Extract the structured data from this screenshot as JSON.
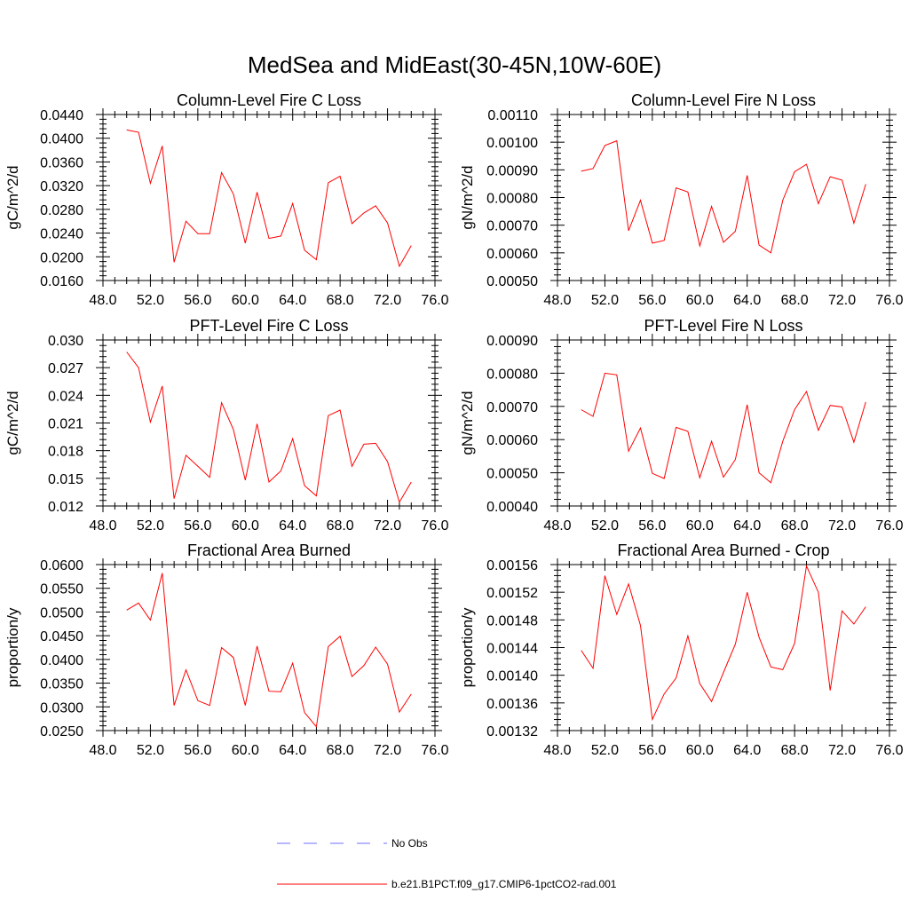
{
  "title": "MedSea and MidEast(30-45N,10W-60E)",
  "legend": [
    {
      "label": "No Obs",
      "color": "#6f6fff",
      "style": "dashed"
    },
    {
      "label": "b.e21.B1PCT.f09_g17.CMIP6-1pctCO2-rad.001",
      "color": "#ff0000",
      "style": "solid"
    }
  ],
  "chart_data": [
    {
      "type": "line",
      "title": "Column-Level Fire C Loss",
      "ylabel": "gC/m^2/d",
      "xlim": [
        48,
        76
      ],
      "ylim": [
        0.016,
        0.044
      ],
      "xticks": [
        "48.0",
        "52.0",
        "56.0",
        "60.0",
        "64.0",
        "68.0",
        "72.0",
        "76.0"
      ],
      "yticks": [
        "0.0160",
        "0.0200",
        "0.0240",
        "0.0280",
        "0.0320",
        "0.0360",
        "0.0400",
        "0.0440"
      ],
      "x": [
        50,
        51,
        52,
        53,
        54,
        55,
        56,
        57,
        58,
        59,
        60,
        61,
        62,
        63,
        64,
        65,
        66,
        67,
        68,
        69,
        70,
        71,
        72,
        73,
        74
      ],
      "series": [
        {
          "values": [
            0.0414,
            0.041,
            0.0324,
            0.0387,
            0.0191,
            0.026,
            0.0239,
            0.0239,
            0.0342,
            0.0306,
            0.0223,
            0.0309,
            0.0231,
            0.0235,
            0.029,
            0.0211,
            0.0195,
            0.0325,
            0.0336,
            0.0256,
            0.0274,
            0.0286,
            0.0257,
            0.0184,
            0.0219
          ],
          "color": "#ff0000"
        }
      ]
    },
    {
      "type": "line",
      "title": "Column-Level Fire N Loss",
      "ylabel": "gN/m^2/d",
      "xlim": [
        48,
        76
      ],
      "ylim": [
        0.0005,
        0.0011
      ],
      "xticks": [
        "48.0",
        "52.0",
        "56.0",
        "60.0",
        "64.0",
        "68.0",
        "72.0",
        "76.0"
      ],
      "yticks": [
        "0.00050",
        "0.00060",
        "0.00070",
        "0.00080",
        "0.00090",
        "0.00100",
        "0.00110"
      ],
      "x": [
        50,
        51,
        52,
        53,
        54,
        55,
        56,
        57,
        58,
        59,
        60,
        61,
        62,
        63,
        64,
        65,
        66,
        67,
        68,
        69,
        70,
        71,
        72,
        73,
        74
      ],
      "series": [
        {
          "values": [
            0.000895,
            0.000905,
            0.000988,
            0.001005,
            0.00068,
            0.00079,
            0.000635,
            0.000645,
            0.000835,
            0.00082,
            0.000625,
            0.000768,
            0.000638,
            0.000678,
            0.00088,
            0.000628,
            0.0006,
            0.00079,
            0.000893,
            0.00092,
            0.000778,
            0.000875,
            0.000863,
            0.000707,
            0.000848
          ],
          "color": "#ff0000"
        }
      ]
    },
    {
      "type": "line",
      "title": "PFT-Level Fire C Loss",
      "ylabel": "gC/m^2/d",
      "xlim": [
        48,
        76
      ],
      "ylim": [
        0.012,
        0.03
      ],
      "xticks": [
        "48.0",
        "52.0",
        "56.0",
        "60.0",
        "64.0",
        "68.0",
        "72.0",
        "76.0"
      ],
      "yticks": [
        "0.012",
        "0.015",
        "0.018",
        "0.021",
        "0.024",
        "0.027",
        "0.030"
      ],
      "x": [
        50,
        51,
        52,
        53,
        54,
        55,
        56,
        57,
        58,
        59,
        60,
        61,
        62,
        63,
        64,
        65,
        66,
        67,
        68,
        69,
        70,
        71,
        72,
        73,
        74
      ],
      "series": [
        {
          "values": [
            0.0287,
            0.027,
            0.0211,
            0.025,
            0.0128,
            0.0175,
            0.0163,
            0.0151,
            0.0232,
            0.0203,
            0.0148,
            0.0209,
            0.0146,
            0.0158,
            0.0193,
            0.0142,
            0.0131,
            0.0218,
            0.0224,
            0.0163,
            0.0187,
            0.0188,
            0.0168,
            0.0124,
            0.0146
          ],
          "color": "#ff0000"
        }
      ]
    },
    {
      "type": "line",
      "title": "PFT-Level Fire N Loss",
      "ylabel": "gN/m^2/d",
      "xlim": [
        48,
        76
      ],
      "ylim": [
        0.0004,
        0.0009
      ],
      "xticks": [
        "48.0",
        "52.0",
        "56.0",
        "60.0",
        "64.0",
        "68.0",
        "72.0",
        "76.0"
      ],
      "yticks": [
        "0.00040",
        "0.00050",
        "0.00060",
        "0.00070",
        "0.00080",
        "0.00090"
      ],
      "x": [
        50,
        51,
        52,
        53,
        54,
        55,
        56,
        57,
        58,
        59,
        60,
        61,
        62,
        63,
        64,
        65,
        66,
        67,
        68,
        69,
        70,
        71,
        72,
        73,
        74
      ],
      "series": [
        {
          "values": [
            0.00069,
            0.00067,
            0.0008,
            0.000795,
            0.000565,
            0.000635,
            0.000498,
            0.000483,
            0.000637,
            0.000625,
            0.000485,
            0.000595,
            0.000487,
            0.00054,
            0.000705,
            0.0005,
            0.00047,
            0.000595,
            0.00069,
            0.000745,
            0.000628,
            0.000703,
            0.000698,
            0.000592,
            0.000713
          ],
          "color": "#ff0000"
        }
      ]
    },
    {
      "type": "line",
      "title": "Fractional Area Burned",
      "ylabel": "proportion/y",
      "xlim": [
        48,
        76
      ],
      "ylim": [
        0.025,
        0.06
      ],
      "xticks": [
        "48.0",
        "52.0",
        "56.0",
        "60.0",
        "64.0",
        "68.0",
        "72.0",
        "76.0"
      ],
      "yticks": [
        "0.0250",
        "0.0300",
        "0.0350",
        "0.0400",
        "0.0450",
        "0.0500",
        "0.0550",
        "0.0600"
      ],
      "x": [
        50,
        51,
        52,
        53,
        54,
        55,
        56,
        57,
        58,
        59,
        60,
        61,
        62,
        63,
        64,
        65,
        66,
        67,
        68,
        69,
        70,
        71,
        72,
        73,
        74
      ],
      "series": [
        {
          "values": [
            0.0504,
            0.0519,
            0.0483,
            0.0582,
            0.0303,
            0.0378,
            0.0313,
            0.0303,
            0.0425,
            0.0404,
            0.0303,
            0.0428,
            0.0333,
            0.0332,
            0.0392,
            0.0288,
            0.0258,
            0.0427,
            0.0449,
            0.0364,
            0.0387,
            0.0426,
            0.039,
            0.0289,
            0.0327
          ],
          "color": "#ff0000"
        }
      ]
    },
    {
      "type": "line",
      "title": "Fractional Area Burned - Crop",
      "ylabel": "proportion/y",
      "xlim": [
        48,
        76
      ],
      "ylim": [
        0.00132,
        0.00156
      ],
      "xticks": [
        "48.0",
        "52.0",
        "56.0",
        "60.0",
        "64.0",
        "68.0",
        "72.0",
        "76.0"
      ],
      "yticks": [
        "0.00132",
        "0.00136",
        "0.00140",
        "0.00144",
        "0.00148",
        "0.00152",
        "0.00156"
      ],
      "x": [
        50,
        51,
        52,
        53,
        54,
        55,
        56,
        57,
        58,
        59,
        60,
        61,
        62,
        63,
        64,
        65,
        66,
        67,
        68,
        69,
        70,
        71,
        72,
        73,
        74
      ],
      "series": [
        {
          "values": [
            0.001436,
            0.00141,
            0.001544,
            0.001488,
            0.001532,
            0.001472,
            0.001336,
            0.001373,
            0.001396,
            0.001457,
            0.001388,
            0.001362,
            0.001404,
            0.001445,
            0.00152,
            0.001455,
            0.001412,
            0.001408,
            0.001446,
            0.001558,
            0.00152,
            0.001378,
            0.001493,
            0.001474,
            0.001499
          ],
          "color": "#ff0000"
        }
      ]
    }
  ]
}
